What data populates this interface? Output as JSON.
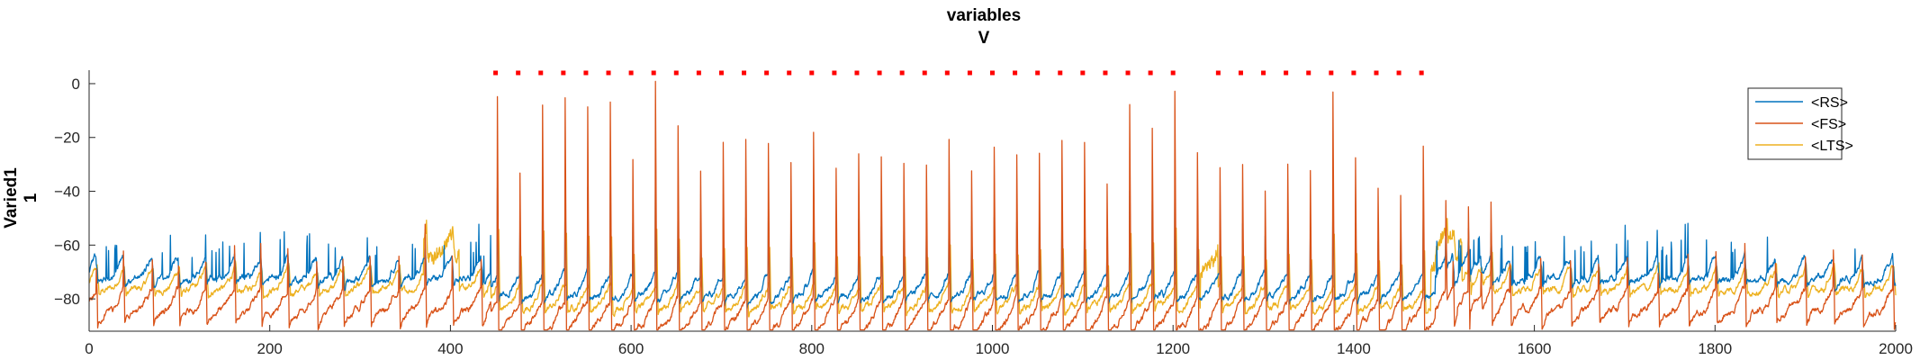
{
  "chart_data": {
    "type": "line",
    "title": "variables",
    "subtitle": "V",
    "ylabel": [
      "Varied1",
      "1"
    ],
    "xlabel": "",
    "xlim": [
      0,
      2000
    ],
    "ylim": [
      -92,
      5
    ],
    "x_ticks": [
      0,
      200,
      400,
      600,
      800,
      1000,
      1200,
      1400,
      1600,
      1800,
      2000
    ],
    "x_tick_labels": [
      "0",
      "200",
      "400",
      "600",
      "800",
      "1000",
      "1200",
      "1400",
      "1600",
      "1800",
      "2000"
    ],
    "y_ticks": [
      0,
      -20,
      -40,
      -60,
      -80
    ],
    "y_tick_labels": [
      "0",
      "−20",
      "−40",
      "−60",
      "−80"
    ],
    "grid": false,
    "legend_position": "top-right",
    "series": [
      {
        "name": "<RS>",
        "color": "#0072BD",
        "rest": -72,
        "spike_amp": 0.55
      },
      {
        "name": "<FS>",
        "color": "#D95319",
        "rest": -84,
        "spike_amp": 1.0
      },
      {
        "name": "<LTS>",
        "color": "#EDB120",
        "rest": -76,
        "spike_amp": 0.45
      }
    ],
    "pulse_markers": {
      "color": "#FF0000",
      "y": 4,
      "x_start": 450,
      "x_end": 1485,
      "step": 25
    },
    "driven_window": [
      450,
      1485
    ],
    "driven_peaks": [
      0,
      -28,
      -4,
      0,
      -3,
      -2,
      -24,
      4,
      -12,
      -28,
      -18,
      -16,
      -18,
      -24,
      -16,
      -28,
      -22,
      -24,
      -26,
      -26,
      -16,
      -28,
      -20,
      -24,
      -22,
      -18,
      -18,
      -34,
      -4,
      -12,
      0,
      -22,
      -28,
      -26,
      -36,
      -26,
      -28,
      0,
      -24,
      -34,
      -38,
      -20,
      -26,
      -28,
      -28
    ],
    "background_peaks": [
      {
        "x": 35,
        "y": -55
      },
      {
        "x": 150,
        "y": -49
      },
      {
        "x": 205,
        "y": -50
      },
      {
        "x": 255,
        "y": -58
      },
      {
        "x": 385,
        "y": -38
      },
      {
        "x": 1545,
        "y": -62
      },
      {
        "x": 1605,
        "y": -57
      },
      {
        "x": 1660,
        "y": -60
      },
      {
        "x": 1720,
        "y": -55
      },
      {
        "x": 1830,
        "y": -49
      },
      {
        "x": 1980,
        "y": -49
      }
    ]
  }
}
